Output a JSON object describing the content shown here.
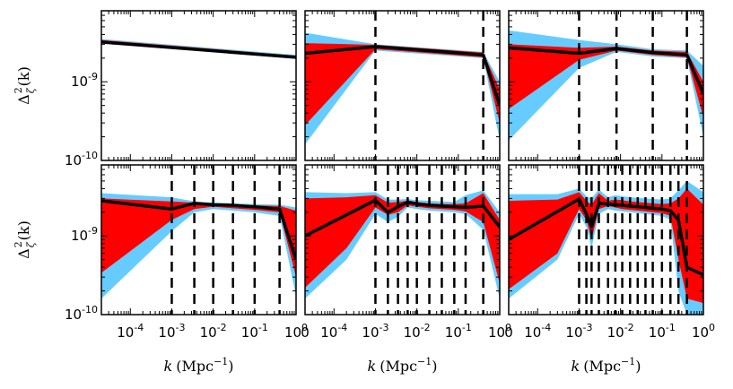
{
  "chart_data": {
    "type": "area",
    "grid": false,
    "x_scale": "log",
    "y_scale": "log",
    "xlim": [
      2e-05,
      1
    ],
    "ylim": [
      1e-10,
      8e-09
    ],
    "colors": {
      "outer_band": "#66ccff",
      "inner_band": "#ff0000",
      "median_line": "#000000",
      "knot_line": "#000000"
    },
    "axes": {
      "xlabel": "k (Mpc⁻¹)",
      "xlabel_base": "k",
      "xlabel_unit": "(Mpc",
      "xlabel_exp": "−1",
      "ylabel_base": "Δ",
      "ylabel_sup": "2",
      "ylabel_sub": "ζ",
      "ylabel_arg": "(k)",
      "y_ticks": [
        {
          "value": 1e-09,
          "base": "10",
          "exp": "-9"
        },
        {
          "value": 1e-10,
          "base": "10",
          "exp": "-10"
        }
      ],
      "x_ticks_first": [
        {
          "value": 0.0001,
          "base": "10",
          "exp": "-4"
        },
        {
          "value": 0.001,
          "base": "10",
          "exp": "-3"
        },
        {
          "value": 0.01,
          "base": "10",
          "exp": "-2"
        },
        {
          "value": 0.1,
          "base": "10",
          "exp": "-1"
        },
        {
          "value": 1,
          "base": "10",
          "exp": "0"
        }
      ],
      "x_ticks_other": [
        {
          "value": 2e-05,
          "base": "0",
          "exp": ""
        },
        {
          "value": 0.0001,
          "base": "10",
          "exp": "-4"
        },
        {
          "value": 0.001,
          "base": "10",
          "exp": "-3"
        },
        {
          "value": 0.01,
          "base": "10",
          "exp": "-2"
        },
        {
          "value": 0.1,
          "base": "10",
          "exp": "-1"
        },
        {
          "value": 1,
          "base": "10",
          "exp": "0"
        }
      ]
    },
    "panels": [
      {
        "row": 0,
        "col": 0,
        "knots": [],
        "series": [
          {
            "name": "outer_band",
            "x": [
              2e-05,
              1
            ],
            "upper": [
              3.5e-09,
              2.2e-09
            ],
            "lower": [
              3.1e-09,
              1.95e-09
            ]
          },
          {
            "name": "inner_band",
            "x": [
              2e-05,
              1
            ],
            "upper": [
              3.4e-09,
              2.15e-09
            ],
            "lower": [
              3.15e-09,
              2e-09
            ]
          },
          {
            "name": "median",
            "x": [
              2e-05,
              1
            ],
            "y": [
              3.2e-09,
              2.05e-09
            ]
          }
        ]
      },
      {
        "row": 0,
        "col": 1,
        "knots": [
          0.001,
          0.4
        ],
        "series": [
          {
            "name": "outer_band",
            "x": [
              2e-05,
              0.001,
              0.4,
              1
            ],
            "upper": [
              4.2e-09,
              3e-09,
              2.4e-09,
              1e-09
            ],
            "lower": [
              1.6e-10,
              2.5e-09,
              2e-09,
              1.8e-10
            ]
          },
          {
            "name": "inner_band",
            "x": [
              2e-05,
              0.001,
              0.4,
              1
            ],
            "upper": [
              3.1e-09,
              2.95e-09,
              2.35e-09,
              8e-10
            ],
            "lower": [
              2.8e-10,
              2.6e-09,
              2.05e-09,
              3e-10
            ]
          },
          {
            "name": "median",
            "x": [
              2e-05,
              0.001,
              0.4,
              1
            ],
            "y": [
              2.3e-09,
              2.8e-09,
              2.2e-09,
              5e-10
            ]
          }
        ]
      },
      {
        "row": 0,
        "col": 2,
        "knots": [
          0.001,
          0.008,
          0.06,
          0.4
        ],
        "series": [
          {
            "name": "outer_band",
            "x": [
              2e-05,
              0.001,
              0.008,
              0.06,
              0.4,
              1
            ],
            "upper": [
              4.5e-09,
              3.4e-09,
              3e-09,
              2.6e-09,
              2.5e-09,
              1.6e-09
            ],
            "lower": [
              1.8e-10,
              1.5e-09,
              2.4e-09,
              2.1e-09,
              2e-09,
              2e-10
            ]
          },
          {
            "name": "inner_band",
            "x": [
              2e-05,
              0.001,
              0.008,
              0.06,
              0.4,
              1
            ],
            "upper": [
              3e-09,
              2.7e-09,
              2.8e-09,
              2.5e-09,
              2.4e-09,
              1e-09
            ],
            "lower": [
              4.5e-10,
              1.9e-09,
              2.5e-09,
              2.2e-09,
              2.05e-09,
              3.5e-10
            ]
          },
          {
            "name": "median",
            "x": [
              2e-05,
              0.001,
              0.008,
              0.06,
              0.4,
              1
            ],
            "y": [
              2.7e-09,
              2.3e-09,
              2.65e-09,
              2.35e-09,
              2.2e-09,
              7e-10
            ]
          }
        ]
      },
      {
        "row": 1,
        "col": 0,
        "knots": [
          0.001,
          0.0035,
          0.01,
          0.03,
          0.1,
          0.4
        ],
        "series": [
          {
            "name": "outer_band",
            "x": [
              2e-05,
              0.001,
              0.0035,
              0.01,
              0.03,
              0.1,
              0.4,
              1
            ],
            "upper": [
              3.5e-09,
              3.1e-09,
              2.75e-09,
              2.65e-09,
              2.6e-09,
              2.55e-09,
              2.5e-09,
              2.3e-09
            ],
            "lower": [
              1.6e-10,
              1.15e-09,
              2e-09,
              2.2e-09,
              2.1e-09,
              2e-09,
              1.8e-09,
              1.7e-10
            ]
          },
          {
            "name": "inner_band",
            "x": [
              2e-05,
              0.001,
              0.0035,
              0.01,
              0.03,
              0.1,
              0.4,
              1
            ],
            "upper": [
              3e-09,
              2.75e-09,
              2.65e-09,
              2.55e-09,
              2.5e-09,
              2.45e-09,
              2.4e-09,
              2.1e-09
            ],
            "lower": [
              3.4e-10,
              1.6e-09,
              2.2e-09,
              2.35e-09,
              2.25e-09,
              2.15e-09,
              2e-09,
              3e-10
            ]
          },
          {
            "name": "median",
            "x": [
              2e-05,
              0.001,
              0.0035,
              0.01,
              0.03,
              0.1,
              0.4,
              1
            ],
            "y": [
              2.8e-09,
              2.2e-09,
              2.6e-09,
              2.5e-09,
              2.45e-09,
              2.35e-09,
              2.2e-09,
              5e-10
            ]
          }
        ]
      },
      {
        "row": 1,
        "col": 1,
        "knots": [
          0.001,
          0.002,
          0.0035,
          0.006,
          0.01,
          0.02,
          0.04,
          0.08,
          0.15,
          0.4
        ],
        "series": [
          {
            "name": "outer_band",
            "x": [
              2e-05,
              0.0002,
              0.001,
              0.002,
              0.0035,
              0.006,
              0.01,
              0.02,
              0.04,
              0.08,
              0.15,
              0.4,
              1
            ],
            "upper": [
              3.6e-09,
              3.5e-09,
              3.6e-09,
              2.9e-09,
              2.9e-09,
              2.95e-09,
              2.85e-09,
              2.8e-09,
              2.75e-09,
              2.7e-09,
              3.3e-09,
              3.8e-09,
              2e-09
            ],
            "lower": [
              1.6e-10,
              5e-10,
              1.9e-09,
              1.5e-09,
              1.75e-09,
              2.3e-09,
              2.2e-09,
              2.1e-09,
              2.05e-09,
              2e-09,
              1.9e-09,
              1.2e-09,
              1.6e-10
            ]
          },
          {
            "name": "inner_band",
            "x": [
              2e-05,
              0.0002,
              0.001,
              0.002,
              0.0035,
              0.006,
              0.01,
              0.02,
              0.04,
              0.08,
              0.15,
              0.4,
              1
            ],
            "upper": [
              3e-09,
              3.1e-09,
              3.3e-09,
              2.65e-09,
              2.7e-09,
              2.8e-09,
              2.7e-09,
              2.6e-09,
              2.55e-09,
              2.55e-09,
              2.6e-09,
              3.5e-09,
              1.6e-09
            ],
            "lower": [
              2.2e-10,
              7e-10,
              2.3e-09,
              1.85e-09,
              2e-09,
              2.45e-09,
              2.35e-09,
              2.25e-09,
              2.2e-09,
              2.15e-09,
              2.05e-09,
              1.5e-09,
              2.5e-10
            ]
          },
          {
            "name": "median",
            "x": [
              2e-05,
              0.001,
              0.002,
              0.0035,
              0.006,
              0.01,
              0.02,
              0.04,
              0.08,
              0.15,
              0.4,
              1
            ],
            "y": [
              1e-09,
              2.85e-09,
              2e-09,
              2.35e-09,
              2.7e-09,
              2.55e-09,
              2.45e-09,
              2.4e-09,
              2.35e-09,
              2.3e-09,
              2.4e-09,
              1.3e-09
            ]
          }
        ]
      },
      {
        "row": 1,
        "col": 2,
        "knots": [
          0.001,
          0.0015,
          0.002,
          0.003,
          0.005,
          0.0075,
          0.011,
          0.017,
          0.026,
          0.04,
          0.06,
          0.1,
          0.16,
          0.25,
          0.4
        ],
        "series": [
          {
            "name": "outer_band",
            "x": [
              2e-05,
              0.0003,
              0.001,
              0.0015,
              0.002,
              0.003,
              0.005,
              0.0075,
              0.011,
              0.017,
              0.026,
              0.04,
              0.06,
              0.1,
              0.16,
              0.25,
              0.4,
              1
            ],
            "upper": [
              3.4e-09,
              3.4e-09,
              4e-09,
              3.2e-09,
              3e-09,
              3.9e-09,
              3.1e-09,
              3.3e-09,
              3.2e-09,
              3.1e-09,
              3.05e-09,
              3e-09,
              2.95e-09,
              2.9e-09,
              3e-09,
              3.8e-09,
              5e-09,
              3.6e-09
            ],
            "lower": [
              1.6e-10,
              5e-10,
              1.9e-09,
              1.3e-09,
              7e-10,
              1.9e-09,
              2.2e-09,
              2.1e-09,
              2.05e-09,
              2e-09,
              1.95e-09,
              1.9e-09,
              1.85e-09,
              1.8e-09,
              1.6e-09,
              2e-10,
              1e-10,
              1e-10
            ]
          },
          {
            "name": "inner_band",
            "x": [
              2e-05,
              0.0003,
              0.001,
              0.0015,
              0.002,
              0.003,
              0.005,
              0.0075,
              0.011,
              0.017,
              0.026,
              0.04,
              0.06,
              0.1,
              0.16,
              0.25,
              0.4,
              1
            ],
            "upper": [
              2.8e-09,
              2.9e-09,
              3.6e-09,
              2.8e-09,
              2.5e-09,
              3.5e-09,
              2.8e-09,
              2.9e-09,
              2.85e-09,
              2.75e-09,
              2.7e-09,
              2.65e-09,
              2.6e-09,
              2.55e-09,
              2.6e-09,
              3e-09,
              4e-09,
              2.5e-09
            ],
            "lower": [
              2.1e-10,
              6e-10,
              2.2e-09,
              1.6e-09,
              9e-10,
              2.2e-09,
              2.4e-09,
              2.3e-09,
              2.2e-09,
              2.15e-09,
              2.1e-09,
              2.05e-09,
              2e-09,
              1.95e-09,
              1.8e-09,
              5e-10,
              1.6e-10,
              1.4e-10
            ]
          },
          {
            "name": "median",
            "x": [
              2e-05,
              0.001,
              0.0015,
              0.002,
              0.003,
              0.005,
              0.0075,
              0.011,
              0.017,
              0.026,
              0.04,
              0.06,
              0.1,
              0.16,
              0.25,
              0.4,
              1
            ],
            "y": [
              9e-10,
              2.95e-09,
              1.9e-09,
              1.3e-09,
              2.6e-09,
              2.55e-09,
              2.5e-09,
              2.45e-09,
              2.4e-09,
              2.35e-09,
              2.3e-09,
              2.25e-09,
              2.2e-09,
              2.1e-09,
              1.6e-09,
              4e-10,
              3.2e-10
            ]
          }
        ]
      }
    ]
  }
}
